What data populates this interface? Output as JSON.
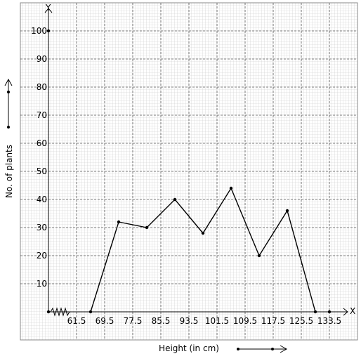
{
  "chart_data": {
    "type": "line",
    "x_label": "Height (in cm)",
    "y_label": "No. of plants",
    "x_axis_name": "X",
    "y_axis_name": "Y",
    "x": [
      65.5,
      73.5,
      81.5,
      89.5,
      97.5,
      105.5,
      113.5,
      121.5,
      129.5
    ],
    "values": [
      0,
      32,
      30,
      40,
      28,
      44,
      20,
      36,
      0
    ],
    "color": "#000000",
    "xlim": [
      53.5,
      137.5
    ],
    "ylim": [
      0,
      110
    ],
    "xticks": [
      61.5,
      69.5,
      77.5,
      85.5,
      93.5,
      101.5,
      109.5,
      117.5,
      125.5,
      133.5
    ],
    "yticks": [
      10,
      20,
      30,
      40,
      50,
      60,
      70,
      80,
      90,
      100
    ],
    "grid": true
  }
}
